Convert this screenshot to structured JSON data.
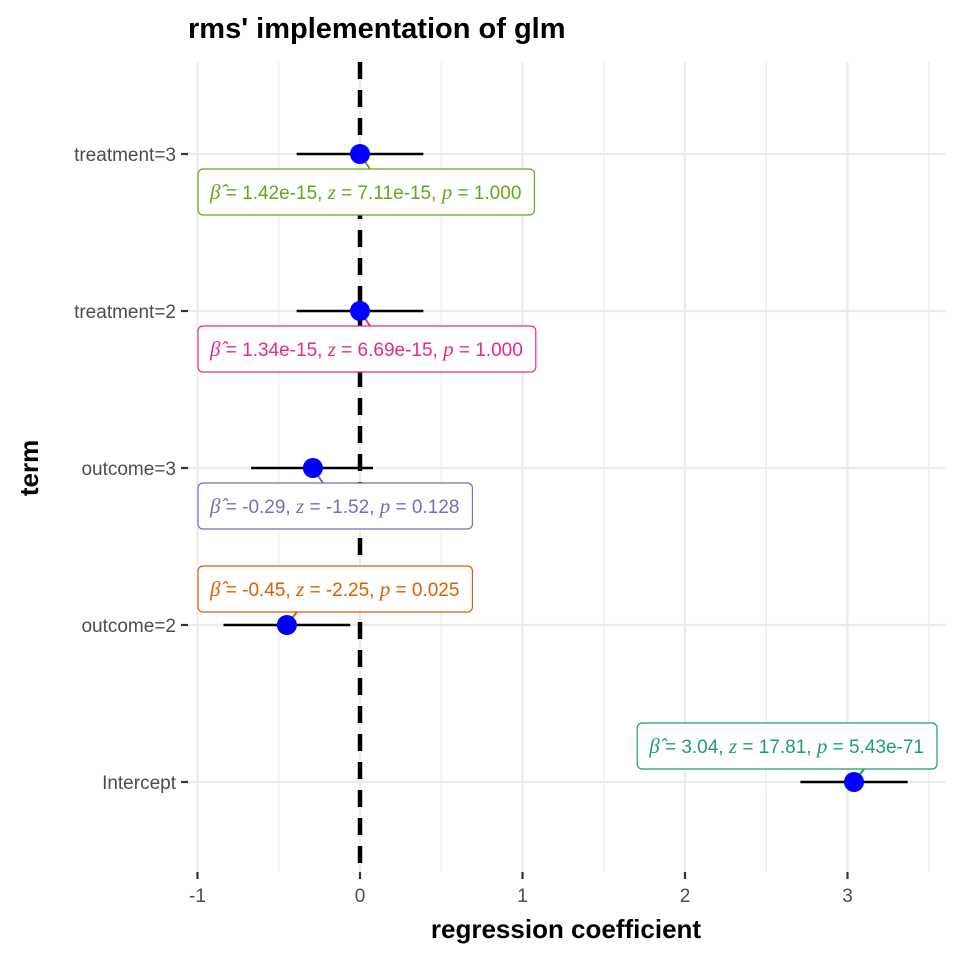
{
  "chart_data": {
    "type": "scatter",
    "title": "rms' implementation of glm",
    "xlabel": "regression coefficient",
    "ylabel": "term",
    "xlim": [
      -1,
      3.55
    ],
    "x_ticks": [
      -1,
      0,
      1,
      2,
      3
    ],
    "x_tick_labels": [
      "-1",
      "0",
      "1",
      "2",
      "3"
    ],
    "grid": true,
    "reference_line": 0,
    "terms": [
      {
        "label": "treatment=3",
        "estimate": 0.0,
        "ci": [
          -0.39,
          0.39
        ],
        "annotation": {
          "beta": "1.42e-15",
          "z": "7.11e-15",
          "p": "1.000"
        },
        "color": "#66a61e"
      },
      {
        "label": "treatment=2",
        "estimate": 0.0,
        "ci": [
          -0.39,
          0.39
        ],
        "annotation": {
          "beta": "1.34e-15",
          "z": "6.69e-15",
          "p": "1.000"
        },
        "color": "#e7298a"
      },
      {
        "label": "outcome=3",
        "estimate": -0.29,
        "ci": [
          -0.67,
          0.08
        ],
        "annotation": {
          "beta": "-0.29",
          "z": "-1.52",
          "p": "0.128"
        },
        "color": "#7570b3"
      },
      {
        "label": "outcome=2",
        "estimate": -0.45,
        "ci": [
          -0.84,
          -0.06
        ],
        "annotation": {
          "beta": "-0.45",
          "z": "-2.25",
          "p": "0.025"
        },
        "color": "#d95f02"
      },
      {
        "label": "Intercept",
        "estimate": 3.04,
        "ci": [
          2.71,
          3.37
        ],
        "annotation": {
          "beta": "3.04",
          "z": "17.81",
          "p": "5.43e-71"
        },
        "color": "#1b9e77"
      }
    ]
  },
  "colors": {
    "point": "#0000ff",
    "errorbar": "#000000",
    "grid": "#ebebeb",
    "reference_line": "#000000"
  }
}
